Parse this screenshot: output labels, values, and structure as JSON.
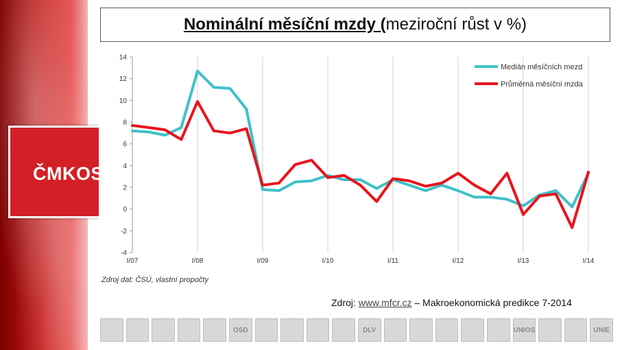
{
  "branding": {
    "logo_text": "ČMKOS"
  },
  "title": {
    "bold_part": "Nominální měsíční mzdy (",
    "rest": "meziroční růst v %)"
  },
  "chart_data": {
    "type": "line",
    "title": "Nominální měsíční mzdy (meziroční růst v %)",
    "xlabel": "",
    "ylabel": "",
    "ylim": [
      -4,
      14
    ],
    "y_ticks": [
      -4,
      -2,
      0,
      2,
      4,
      6,
      8,
      10,
      12,
      14
    ],
    "x_ticks": [
      "I/07",
      "I/08",
      "I/09",
      "I/10",
      "I/11",
      "I/12",
      "I/13",
      "I/14"
    ],
    "x_quarters": [
      "I/07",
      "II/07",
      "III/07",
      "IV/07",
      "I/08",
      "II/08",
      "III/08",
      "IV/08",
      "I/09",
      "II/09",
      "III/09",
      "IV/09",
      "I/10",
      "II/10",
      "III/10",
      "IV/10",
      "I/11",
      "II/11",
      "III/11",
      "IV/11",
      "I/12",
      "II/12",
      "III/12",
      "IV/12",
      "I/13",
      "II/13",
      "III/13",
      "IV/13",
      "I/14"
    ],
    "grid": "vertical",
    "legend_position": "top-right",
    "series": [
      {
        "name": "Medián měsíčních mezd",
        "color": "#3fc0c8",
        "values": [
          7.2,
          7.1,
          6.8,
          7.5,
          12.7,
          11.2,
          11.1,
          9.2,
          1.8,
          1.7,
          2.5,
          2.6,
          3.1,
          2.7,
          2.7,
          1.9,
          2.7,
          2.2,
          1.7,
          2.2,
          1.7,
          1.1,
          1.1,
          0.9,
          0.3,
          1.3,
          1.7,
          0.2,
          3.3
        ]
      },
      {
        "name": "Průměrná měsíční mzda",
        "color": "#e8141c",
        "values": [
          7.7,
          7.5,
          7.3,
          6.4,
          9.9,
          7.2,
          7.0,
          7.4,
          2.2,
          2.4,
          4.1,
          4.5,
          2.9,
          3.1,
          2.2,
          0.7,
          2.8,
          2.6,
          2.1,
          2.4,
          3.3,
          2.2,
          1.4,
          3.3,
          -0.5,
          1.2,
          1.4,
          -1.7,
          3.4
        ]
      }
    ],
    "source_note": "Zdroj dat: ČSÚ, vlastní propočty"
  },
  "source": {
    "prefix": "Zdroj: ",
    "link": "www.mfcr.cz",
    "suffix": " – Makroekonomická predikce 7-2014"
  },
  "union_logos": [
    "",
    "",
    "",
    "",
    "",
    "OSD",
    "",
    "",
    "",
    "",
    "DLV",
    "",
    "",
    "",
    "",
    "",
    "UNIOS",
    "",
    "",
    "UNIE"
  ]
}
